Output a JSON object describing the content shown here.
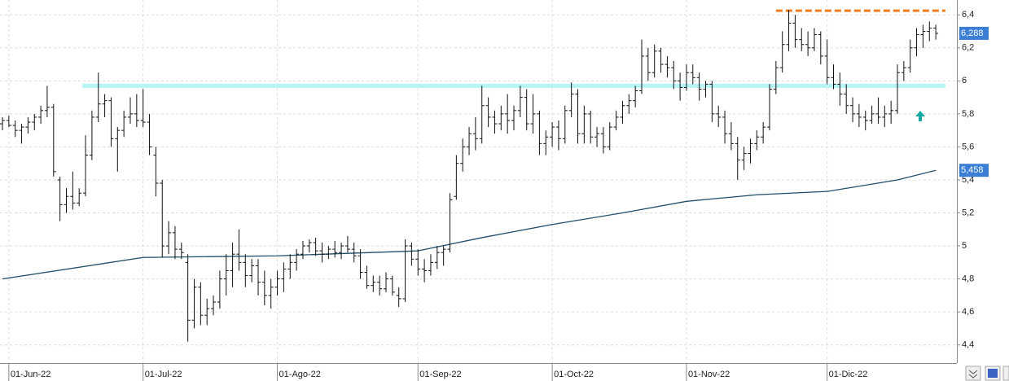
{
  "chart_data": {
    "type": "ohlc",
    "categories": [
      null,
      "01-Jun-22",
      null,
      null,
      null,
      null,
      null,
      null,
      null,
      null,
      null,
      null,
      null,
      null,
      null,
      null,
      null,
      null,
      null,
      null,
      null,
      null,
      "01-Jul-22",
      null,
      null,
      null,
      null,
      null,
      null,
      null,
      null,
      null,
      null,
      null,
      null,
      null,
      null,
      null,
      null,
      null,
      null,
      null,
      null,
      "01-Ago-22",
      null,
      null,
      null,
      null,
      null,
      null,
      null,
      null,
      null,
      null,
      null,
      null,
      null,
      null,
      null,
      null,
      null,
      null,
      null,
      null,
      null,
      "01-Sep-22",
      null,
      null,
      null,
      null,
      null,
      null,
      null,
      null,
      null,
      null,
      null,
      null,
      null,
      null,
      null,
      null,
      null,
      null,
      null,
      null,
      "01-Oct-22",
      null,
      null,
      null,
      null,
      null,
      null,
      null,
      null,
      null,
      null,
      null,
      null,
      null,
      null,
      null,
      null,
      null,
      null,
      null,
      null,
      "01-Nov-22",
      null,
      null,
      null,
      null,
      null,
      null,
      null,
      null,
      null,
      null,
      null,
      null,
      null,
      null,
      null,
      null,
      null,
      null,
      null,
      null,
      null,
      "01-Dic-22",
      null,
      null,
      null,
      null,
      null,
      null,
      null,
      null,
      null,
      null,
      null,
      null,
      null,
      null,
      null,
      null,
      null
    ],
    "ohlc": [
      [
        5.74,
        5.78,
        5.7,
        5.76
      ],
      [
        5.76,
        5.79,
        5.72,
        5.73
      ],
      [
        5.73,
        5.76,
        5.66,
        5.7
      ],
      [
        5.7,
        5.74,
        5.62,
        5.72
      ],
      [
        5.72,
        5.78,
        5.68,
        5.75
      ],
      [
        5.75,
        5.8,
        5.7,
        5.78
      ],
      [
        5.78,
        5.85,
        5.74,
        5.82
      ],
      [
        5.82,
        5.97,
        5.78,
        5.84
      ],
      [
        5.84,
        5.86,
        5.42,
        5.45
      ],
      [
        5.4,
        5.42,
        5.15,
        5.25
      ],
      [
        5.25,
        5.35,
        5.2,
        5.3
      ],
      [
        5.3,
        5.45,
        5.22,
        5.26
      ],
      [
        5.26,
        5.35,
        5.24,
        5.32
      ],
      [
        5.32,
        5.67,
        5.3,
        5.55
      ],
      [
        5.55,
        5.82,
        5.52,
        5.78
      ],
      [
        5.78,
        6.05,
        5.75,
        5.86
      ],
      [
        5.86,
        5.92,
        5.78,
        5.88
      ],
      [
        5.88,
        5.9,
        5.6,
        5.65
      ],
      [
        5.65,
        5.72,
        5.45,
        5.7
      ],
      [
        5.7,
        5.82,
        5.66,
        5.78
      ],
      [
        5.78,
        5.9,
        5.74,
        5.8
      ],
      [
        5.8,
        5.92,
        5.72,
        5.76
      ],
      [
        5.76,
        5.95,
        5.72,
        5.75
      ],
      [
        5.75,
        5.8,
        5.55,
        5.6
      ],
      [
        5.55,
        5.6,
        5.3,
        5.38
      ],
      [
        5.38,
        5.4,
        4.93,
        5.0
      ],
      [
        5.0,
        5.15,
        4.95,
        5.08
      ],
      [
        5.08,
        5.12,
        4.92,
        4.98
      ],
      [
        4.98,
        5.02,
        4.92,
        4.96
      ],
      [
        4.9,
        4.95,
        4.42,
        4.55
      ],
      [
        4.55,
        4.8,
        4.5,
        4.75
      ],
      [
        4.75,
        4.78,
        4.52,
        4.58
      ],
      [
        4.58,
        4.68,
        4.52,
        4.62
      ],
      [
        4.62,
        4.7,
        4.58,
        4.66
      ],
      [
        4.66,
        4.85,
        4.62,
        4.8
      ],
      [
        4.8,
        4.95,
        4.7,
        4.85
      ],
      [
        4.85,
        5.02,
        4.75,
        4.95
      ],
      [
        4.95,
        5.1,
        4.85,
        4.9
      ],
      [
        4.9,
        4.95,
        4.75,
        4.82
      ],
      [
        4.82,
        4.92,
        4.78,
        4.88
      ],
      [
        4.88,
        4.92,
        4.7,
        4.78
      ],
      [
        4.78,
        4.85,
        4.64,
        4.7
      ],
      [
        4.7,
        4.8,
        4.62,
        4.75
      ],
      [
        4.75,
        4.85,
        4.7,
        4.8
      ],
      [
        4.8,
        4.9,
        4.72,
        4.86
      ],
      [
        4.86,
        4.95,
        4.8,
        4.9
      ],
      [
        4.9,
        4.98,
        4.85,
        4.95
      ],
      [
        4.95,
        5.03,
        4.92,
        5.0
      ],
      [
        5.0,
        5.04,
        4.96,
        5.02
      ],
      [
        5.02,
        5.05,
        4.94,
        4.97
      ],
      [
        4.97,
        5.02,
        4.9,
        4.95
      ],
      [
        4.95,
        5.0,
        4.92,
        4.98
      ],
      [
        4.98,
        5.03,
        4.93,
        4.96
      ],
      [
        4.96,
        5.02,
        4.92,
        5.0
      ],
      [
        5.0,
        5.06,
        4.96,
        4.98
      ],
      [
        4.98,
        5.02,
        4.9,
        4.94
      ],
      [
        4.94,
        4.98,
        4.8,
        4.84
      ],
      [
        4.84,
        4.88,
        4.74,
        4.76
      ],
      [
        4.76,
        4.82,
        4.72,
        4.78
      ],
      [
        4.78,
        4.82,
        4.7,
        4.74
      ],
      [
        4.74,
        4.84,
        4.72,
        4.8
      ],
      [
        4.8,
        4.82,
        4.7,
        4.72
      ],
      [
        4.7,
        4.75,
        4.63,
        4.68
      ],
      [
        4.68,
        5.04,
        4.66,
        5.0
      ],
      [
        5.0,
        5.02,
        4.88,
        4.92
      ],
      [
        4.92,
        4.98,
        4.82,
        4.86
      ],
      [
        4.86,
        4.92,
        4.78,
        4.85
      ],
      [
        4.85,
        4.95,
        4.82,
        4.9
      ],
      [
        4.9,
        5.0,
        4.86,
        4.96
      ],
      [
        4.96,
        5.0,
        4.88,
        4.98
      ],
      [
        4.98,
        5.32,
        4.96,
        5.28
      ],
      [
        5.3,
        5.55,
        5.28,
        5.5
      ],
      [
        5.5,
        5.65,
        5.45,
        5.6
      ],
      [
        5.6,
        5.72,
        5.55,
        5.68
      ],
      [
        5.68,
        5.78,
        5.58,
        5.65
      ],
      [
        5.65,
        5.97,
        5.62,
        5.85
      ],
      [
        5.85,
        5.9,
        5.72,
        5.78
      ],
      [
        5.78,
        5.82,
        5.68,
        5.74
      ],
      [
        5.74,
        5.85,
        5.7,
        5.8
      ],
      [
        5.8,
        5.92,
        5.68,
        5.76
      ],
      [
        5.76,
        5.85,
        5.7,
        5.82
      ],
      [
        5.82,
        5.97,
        5.78,
        5.9
      ],
      [
        5.9,
        5.95,
        5.7,
        5.74
      ],
      [
        5.74,
        5.92,
        5.68,
        5.8
      ],
      [
        5.8,
        5.82,
        5.55,
        5.62
      ],
      [
        5.62,
        5.7,
        5.55,
        5.66
      ],
      [
        5.66,
        5.75,
        5.6,
        5.72
      ],
      [
        5.72,
        5.76,
        5.58,
        5.65
      ],
      [
        5.65,
        5.85,
        5.62,
        5.82
      ],
      [
        5.82,
        5.99,
        5.78,
        5.92
      ],
      [
        5.92,
        5.95,
        5.62,
        5.68
      ],
      [
        5.68,
        5.85,
        5.62,
        5.8
      ],
      [
        5.8,
        5.82,
        5.62,
        5.66
      ],
      [
        5.66,
        5.72,
        5.6,
        5.68
      ],
      [
        5.68,
        5.72,
        5.56,
        5.6
      ],
      [
        5.6,
        5.75,
        5.58,
        5.72
      ],
      [
        5.72,
        5.82,
        5.7,
        5.78
      ],
      [
        5.78,
        5.88,
        5.74,
        5.85
      ],
      [
        5.85,
        5.92,
        5.8,
        5.88
      ],
      [
        5.88,
        5.97,
        5.84,
        5.94
      ],
      [
        5.94,
        6.25,
        5.92,
        6.15
      ],
      [
        6.15,
        6.2,
        6.0,
        6.05
      ],
      [
        6.05,
        6.22,
        6.02,
        6.18
      ],
      [
        6.18,
        6.2,
        6.05,
        6.1
      ],
      [
        6.1,
        6.15,
        6.02,
        6.08
      ],
      [
        6.08,
        6.12,
        5.95,
        6.0
      ],
      [
        6.0,
        6.05,
        5.88,
        5.96
      ],
      [
        5.96,
        6.1,
        5.94,
        6.05
      ],
      [
        6.05,
        6.1,
        5.98,
        6.02
      ],
      [
        6.02,
        6.05,
        5.88,
        5.95
      ],
      [
        5.95,
        6.0,
        5.9,
        5.98
      ],
      [
        5.98,
        6.0,
        5.75,
        5.8
      ],
      [
        5.8,
        5.85,
        5.72,
        5.78
      ],
      [
        5.78,
        5.82,
        5.62,
        5.68
      ],
      [
        5.68,
        5.75,
        5.58,
        5.62
      ],
      [
        5.62,
        5.66,
        5.4,
        5.52
      ],
      [
        5.52,
        5.6,
        5.46,
        5.56
      ],
      [
        5.56,
        5.65,
        5.5,
        5.62
      ],
      [
        5.62,
        5.7,
        5.58,
        5.66
      ],
      [
        5.66,
        5.75,
        5.62,
        5.72
      ],
      [
        5.72,
        5.98,
        5.7,
        5.95
      ],
      [
        5.95,
        6.12,
        5.92,
        6.08
      ],
      [
        6.08,
        6.3,
        6.05,
        6.22
      ],
      [
        6.22,
        6.43,
        6.18,
        6.35
      ],
      [
        6.35,
        6.4,
        6.2,
        6.25
      ],
      [
        6.25,
        6.32,
        6.18,
        6.22
      ],
      [
        6.22,
        6.3,
        6.15,
        6.2
      ],
      [
        6.2,
        6.32,
        6.18,
        6.28
      ],
      [
        6.28,
        6.3,
        6.1,
        6.15
      ],
      [
        6.15,
        6.25,
        5.98,
        6.02
      ],
      [
        6.02,
        6.1,
        5.95,
        5.98
      ],
      [
        5.98,
        6.05,
        5.85,
        5.92
      ],
      [
        5.92,
        5.98,
        5.8,
        5.85
      ],
      [
        5.85,
        5.9,
        5.75,
        5.8
      ],
      [
        5.8,
        5.86,
        5.72,
        5.78
      ],
      [
        5.78,
        5.82,
        5.7,
        5.76
      ],
      [
        5.76,
        5.85,
        5.74,
        5.8
      ],
      [
        5.8,
        5.9,
        5.74,
        5.78
      ],
      [
        5.78,
        5.85,
        5.72,
        5.8
      ],
      [
        5.8,
        5.88,
        5.74,
        5.82
      ],
      [
        5.82,
        6.1,
        5.8,
        6.05
      ],
      [
        6.05,
        6.12,
        6.0,
        6.08
      ],
      [
        6.08,
        6.25,
        6.05,
        6.2
      ],
      [
        6.2,
        6.32,
        6.15,
        6.28
      ],
      [
        6.28,
        6.34,
        6.2,
        6.3
      ],
      [
        6.3,
        6.36,
        6.24,
        6.32
      ],
      [
        6.32,
        6.34,
        6.25,
        6.288
      ]
    ],
    "bar_color": "#111111",
    "moving_average": {
      "color": "#1f4e6b",
      "x": [
        0,
        22,
        43,
        65,
        75,
        86,
        97,
        107,
        118,
        129,
        140,
        146
      ],
      "values": [
        4.8,
        4.93,
        4.94,
        4.97,
        5.05,
        5.13,
        5.2,
        5.27,
        5.31,
        5.33,
        5.4,
        5.458
      ]
    },
    "hlines": [
      {
        "value": 5.97,
        "x": [
          12.5,
          147.5
        ],
        "color": "#b8f4f6",
        "style": "band"
      },
      {
        "value": 6.425,
        "x": [
          121,
          147.5
        ],
        "color": "#f07d1e",
        "style": "dashed"
      }
    ],
    "price_labels": [
      {
        "value": 6.288,
        "label": "6,288"
      },
      {
        "value": 5.458,
        "label": "5,458"
      }
    ],
    "ylim": [
      4.29,
      6.49
    ],
    "yticks": [
      {
        "value": 4.4,
        "label": "4,4"
      },
      {
        "value": 4.6,
        "label": "4,6"
      },
      {
        "value": 4.8,
        "label": "4,8"
      },
      5,
      {
        "value": 5.2,
        "label": "5,2"
      },
      {
        "value": 5.4,
        "label": "5,4"
      },
      {
        "value": 5.6,
        "label": "5,6"
      },
      {
        "value": 5.8,
        "label": "5,8"
      },
      6,
      {
        "value": 6.2,
        "label": "6,2"
      },
      {
        "value": 6.4,
        "label": "6,4"
      }
    ],
    "grid": true
  }
}
